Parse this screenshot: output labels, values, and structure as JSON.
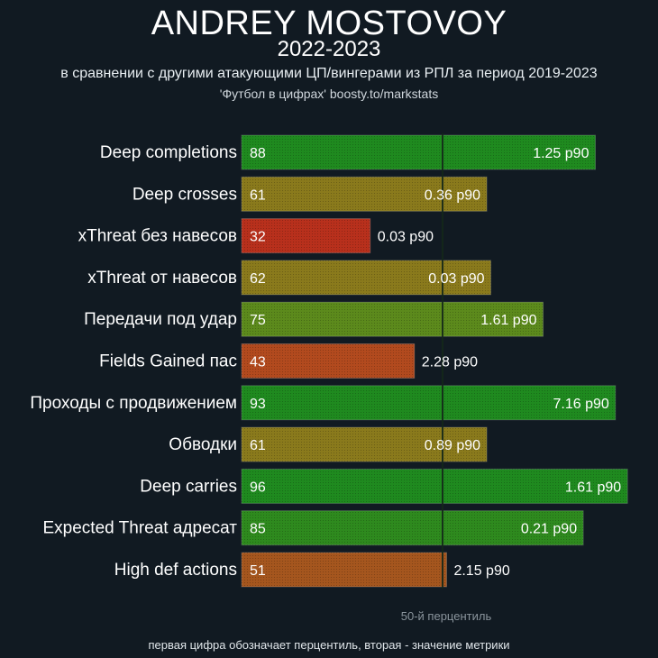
{
  "header": {
    "title": "ANDREY MOSTOVOY",
    "season": "2022-2023",
    "description": "в сравнении с другими атакующими ЦП/вингерами из РПЛ за период 2019-2023",
    "source": "'Футбол в цифрах' boosty.to/markstats"
  },
  "chart_data": {
    "type": "bar",
    "orientation": "horizontal",
    "xlim": [
      0,
      100
    ],
    "reference_line": {
      "value": 50,
      "label": "50-й перцентиль"
    },
    "categories": [
      "Deep completions",
      "Deep crosses",
      "xThreat без навесов",
      "xThreat от навесов",
      "Передачи под удар",
      "Fields Gained пас",
      "Проходы с продвижением",
      "Обводки",
      "Deep carries",
      "Expected Threat адресат",
      "High def actions"
    ],
    "percentiles": [
      88,
      61,
      32,
      62,
      75,
      43,
      93,
      61,
      96,
      85,
      51
    ],
    "metric_values": [
      "1.25 p90",
      "0.36 p90",
      "0.03 p90",
      "0.03 p90",
      "1.61 p90",
      "2.28 p90",
      "7.16 p90",
      "0.89 p90",
      "1.61 p90",
      "0.21 p90",
      "2.15 p90"
    ],
    "colors": [
      "#1f8a1f",
      "#8a7a1c",
      "#b8301c",
      "#8a7a1c",
      "#5c8a1c",
      "#b24a1e",
      "#1f8a1f",
      "#8a7a1c",
      "#1f8a1f",
      "#2e8a1e",
      "#a5561e"
    ]
  },
  "footer": {
    "note": "первая цифра обозначает перцентиль, вторая - значение метрики"
  }
}
